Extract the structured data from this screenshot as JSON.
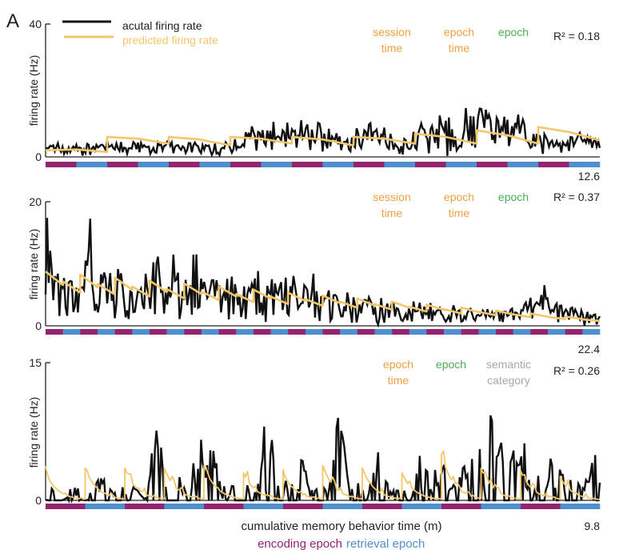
{
  "figure": {
    "panel_label": "A",
    "legend": {
      "actual": "acutal firing rate",
      "predicted": "predicted firing rate"
    },
    "colors": {
      "actual": "#111111",
      "predicted": "#F2C76B",
      "encoding": "#93246E",
      "retrieval": "#4F8FCC",
      "orange_label": "#F0A040",
      "green_label": "#4CAF50",
      "gray_label": "#A8A8A8"
    },
    "xlabel": "cumulative memory behavior time (m)",
    "epoch_legend": {
      "encoding": "encoding epoch",
      "retrieval": "retrieval epoch"
    }
  },
  "chart_data": [
    {
      "type": "line",
      "panel": 1,
      "ylabel": "firing rate (Hz)",
      "ylim": [
        0,
        40
      ],
      "yticks": [
        "0",
        "40"
      ],
      "x_end_label": "12.6",
      "x_range_minutes": [
        0,
        12.6
      ],
      "r2": "R² = 0.18",
      "predictors": [
        {
          "text": [
            "session",
            "time"
          ],
          "color": "orange"
        },
        {
          "text": [
            "epoch",
            "time"
          ],
          "color": "orange"
        },
        {
          "text": [
            "epoch"
          ],
          "color": "green"
        }
      ],
      "epochs": [
        "encoding",
        "retrieval",
        "encoding",
        "retrieval",
        "encoding",
        "retrieval",
        "encoding",
        "retrieval",
        "encoding",
        "retrieval",
        "encoding",
        "retrieval",
        "encoding",
        "retrieval",
        "encoding",
        "retrieval",
        "encoding",
        "retrieval"
      ],
      "series": [
        {
          "name": "acutal firing rate",
          "peaks": [
            [
              0.01,
              3
            ],
            [
              0.03,
              1.5
            ],
            [
              0.06,
              0.5
            ],
            [
              0.1,
              4
            ],
            [
              0.13,
              3
            ],
            [
              0.18,
              5
            ],
            [
              0.22,
              2.5
            ],
            [
              0.26,
              4.5
            ],
            [
              0.3,
              2
            ],
            [
              0.34,
              1
            ],
            [
              0.37,
              11
            ],
            [
              0.39,
              3
            ],
            [
              0.41,
              10
            ],
            [
              0.43,
              14
            ],
            [
              0.46,
              4
            ],
            [
              0.48,
              10
            ],
            [
              0.5,
              9
            ],
            [
              0.52,
              3
            ],
            [
              0.55,
              8
            ],
            [
              0.57,
              4
            ],
            [
              0.59,
              12
            ],
            [
              0.61,
              6
            ],
            [
              0.63,
              1
            ],
            [
              0.65,
              2
            ],
            [
              0.68,
              12
            ],
            [
              0.7,
              8
            ],
            [
              0.72,
              13
            ],
            [
              0.74,
              6
            ],
            [
              0.76,
              11
            ],
            [
              0.79,
              20
            ],
            [
              0.8,
              12
            ],
            [
              0.83,
              7
            ],
            [
              0.85,
              15
            ],
            [
              0.87,
              6
            ],
            [
              0.9,
              7
            ],
            [
              0.93,
              4
            ],
            [
              0.96,
              9
            ],
            [
              0.99,
              6
            ]
          ]
        },
        {
          "name": "predicted firing rate",
          "epoch_start_values": [
            2,
            1.5,
            6,
            4,
            6,
            3.5,
            6,
            4,
            6,
            3.5,
            6,
            4,
            7,
            4,
            8,
            4,
            9,
            5
          ]
        }
      ]
    },
    {
      "type": "line",
      "panel": 2,
      "ylabel": "firing rate (Hz)",
      "ylim": [
        0,
        20
      ],
      "yticks": [
        "0",
        "20"
      ],
      "x_end_label": "22.4",
      "x_range_minutes": [
        0,
        22.4
      ],
      "r2": "R² = 0.37",
      "predictors": [
        {
          "text": [
            "session",
            "time"
          ],
          "color": "orange"
        },
        {
          "text": [
            "epoch",
            "time"
          ],
          "color": "orange"
        },
        {
          "text": [
            "epoch"
          ],
          "color": "green"
        }
      ],
      "epochs_count": 32,
      "first_epoch": "encoding",
      "series": [
        {
          "name": "acutal firing rate",
          "peaks": [
            [
              0.0,
              22
            ],
            [
              0.02,
              10
            ],
            [
              0.04,
              15
            ],
            [
              0.08,
              18
            ],
            [
              0.1,
              12
            ],
            [
              0.13,
              14
            ],
            [
              0.17,
              10
            ],
            [
              0.2,
              15
            ],
            [
              0.23,
              12
            ],
            [
              0.27,
              14
            ],
            [
              0.3,
              11
            ],
            [
              0.34,
              15
            ],
            [
              0.38,
              9
            ],
            [
              0.41,
              10
            ],
            [
              0.44,
              16
            ],
            [
              0.47,
              8
            ],
            [
              0.5,
              7
            ],
            [
              0.53,
              7
            ],
            [
              0.58,
              6
            ],
            [
              0.62,
              5
            ],
            [
              0.66,
              4
            ],
            [
              0.7,
              3
            ],
            [
              0.74,
              3
            ],
            [
              0.78,
              3
            ],
            [
              0.82,
              3
            ],
            [
              0.86,
              3
            ],
            [
              0.9,
              7
            ],
            [
              0.94,
              3
            ],
            [
              0.98,
              3
            ]
          ]
        },
        {
          "name": "predicted firing rate",
          "start": 7,
          "end": 0.8
        }
      ]
    },
    {
      "type": "line",
      "panel": 3,
      "ylabel": "firing rate (Hz)",
      "ylim": [
        0,
        15
      ],
      "yticks": [
        "0",
        "15"
      ],
      "x_end_label": "9.8",
      "x_range_minutes": [
        0,
        9.8
      ],
      "r2": "R² = 0.26",
      "predictors": [
        {
          "text": [
            "epoch",
            "time"
          ],
          "color": "orange"
        },
        {
          "text": [
            "epoch"
          ],
          "color": "green"
        },
        {
          "text": [
            "semantic",
            "category"
          ],
          "color": "gray"
        }
      ],
      "epochs": [
        "encoding",
        "retrieval",
        "encoding",
        "retrieval",
        "encoding",
        "retrieval",
        "encoding",
        "retrieval",
        "encoding",
        "retrieval",
        "encoding",
        "retrieval",
        "encoding",
        "retrieval"
      ],
      "series": [
        {
          "name": "acutal firing rate",
          "peaks": [
            [
              0.05,
              1
            ],
            [
              0.1,
              3.5
            ],
            [
              0.16,
              1.5
            ],
            [
              0.2,
              10
            ],
            [
              0.28,
              7
            ],
            [
              0.3,
              7.5
            ],
            [
              0.4,
              11.5
            ],
            [
              0.46,
              6
            ],
            [
              0.53,
              11.5
            ],
            [
              0.6,
              7
            ],
            [
              0.68,
              6.5
            ],
            [
              0.72,
              4.5
            ],
            [
              0.75,
              6.5
            ],
            [
              0.8,
              12.5
            ],
            [
              0.82,
              9
            ],
            [
              0.86,
              8
            ],
            [
              0.92,
              8.5
            ],
            [
              0.99,
              6
            ]
          ]
        },
        {
          "name": "predicted firing rate",
          "epoch_jumps": [
            3,
            3.5,
            3.5,
            3.5,
            3.8,
            3,
            3,
            3.8,
            3.5,
            3,
            5,
            3.5,
            3.2,
            2.5
          ]
        }
      ]
    }
  ]
}
